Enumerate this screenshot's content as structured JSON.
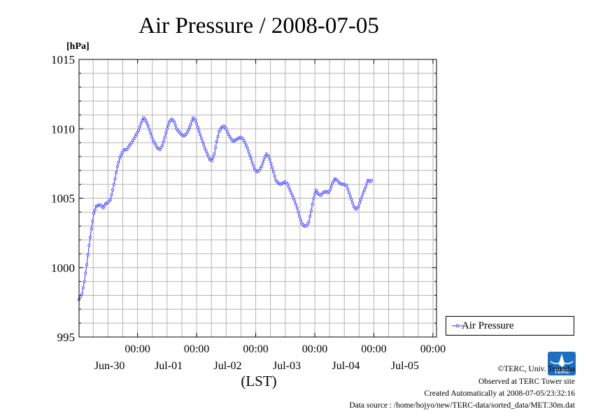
{
  "chart_data": {
    "type": "line",
    "title": "Air Pressure / 2008-07-05",
    "ylabel": "[hPa]",
    "xlabel": "(LST)",
    "ylim": [
      995,
      1015
    ],
    "yticks": [
      995,
      1000,
      1005,
      1010,
      1015
    ],
    "xlim": [
      -0.99,
      5.06
    ],
    "xticks": [
      {
        "pos": 0,
        "time": "00:00",
        "date": "Jun-30"
      },
      {
        "pos": 1,
        "time": "00:00",
        "date": "Jul-01"
      },
      {
        "pos": 2,
        "time": "00:00",
        "date": "Jul-02"
      },
      {
        "pos": 3,
        "time": "00:00",
        "date": "Jul-03"
      },
      {
        "pos": 4,
        "time": "00:00",
        "date": "Jul-04"
      },
      {
        "pos": 5,
        "time": "00:00",
        "date": "Jul-05"
      }
    ],
    "grid": true,
    "legend_position": "right",
    "series": [
      {
        "name": "Air Pressure",
        "color": "#3333ff",
        "x_unit": "days relative to 2008-07-01 00:00 LST (tick 00:00 labelled Jul-01 = 1)",
        "points": [
          [
            -0.99,
            997.7
          ],
          [
            -0.94,
            998.1
          ],
          [
            -0.9,
            999.0
          ],
          [
            -0.86,
            1000.2
          ],
          [
            -0.82,
            1001.6
          ],
          [
            -0.78,
            1002.8
          ],
          [
            -0.74,
            1003.9
          ],
          [
            -0.7,
            1004.4
          ],
          [
            -0.66,
            1004.5
          ],
          [
            -0.62,
            1004.5
          ],
          [
            -0.58,
            1004.3
          ],
          [
            -0.54,
            1004.6
          ],
          [
            -0.5,
            1004.7
          ],
          [
            -0.46,
            1004.9
          ],
          [
            -0.42,
            1005.6
          ],
          [
            -0.38,
            1006.4
          ],
          [
            -0.34,
            1007.3
          ],
          [
            -0.3,
            1007.9
          ],
          [
            -0.26,
            1008.3
          ],
          [
            -0.22,
            1008.5
          ],
          [
            -0.18,
            1008.5
          ],
          [
            -0.14,
            1008.8
          ],
          [
            -0.1,
            1009.0
          ],
          [
            -0.06,
            1009.3
          ],
          [
            -0.02,
            1009.6
          ],
          [
            0.02,
            1009.9
          ],
          [
            0.06,
            1010.4
          ],
          [
            0.1,
            1010.8
          ],
          [
            0.14,
            1010.6
          ],
          [
            0.18,
            1010.2
          ],
          [
            0.22,
            1009.7
          ],
          [
            0.26,
            1009.2
          ],
          [
            0.3,
            1008.9
          ],
          [
            0.34,
            1008.6
          ],
          [
            0.38,
            1008.5
          ],
          [
            0.42,
            1008.8
          ],
          [
            0.46,
            1009.4
          ],
          [
            0.5,
            1010.0
          ],
          [
            0.54,
            1010.5
          ],
          [
            0.58,
            1010.7
          ],
          [
            0.62,
            1010.5
          ],
          [
            0.66,
            1010.0
          ],
          [
            0.7,
            1009.8
          ],
          [
            0.74,
            1009.6
          ],
          [
            0.78,
            1009.5
          ],
          [
            0.82,
            1009.6
          ],
          [
            0.86,
            1009.9
          ],
          [
            0.9,
            1010.3
          ],
          [
            0.94,
            1010.8
          ],
          [
            0.98,
            1010.6
          ],
          [
            1.02,
            1010.1
          ],
          [
            1.06,
            1009.6
          ],
          [
            1.1,
            1009.1
          ],
          [
            1.14,
            1008.6
          ],
          [
            1.18,
            1008.2
          ],
          [
            1.22,
            1007.8
          ],
          [
            1.26,
            1007.7
          ],
          [
            1.3,
            1008.2
          ],
          [
            1.34,
            1009.1
          ],
          [
            1.38,
            1009.8
          ],
          [
            1.42,
            1010.1
          ],
          [
            1.46,
            1010.2
          ],
          [
            1.5,
            1010.0
          ],
          [
            1.54,
            1009.6
          ],
          [
            1.58,
            1009.3
          ],
          [
            1.62,
            1009.1
          ],
          [
            1.66,
            1009.2
          ],
          [
            1.7,
            1009.3
          ],
          [
            1.74,
            1009.4
          ],
          [
            1.78,
            1009.3
          ],
          [
            1.82,
            1009.0
          ],
          [
            1.86,
            1008.6
          ],
          [
            1.9,
            1008.1
          ],
          [
            1.94,
            1007.6
          ],
          [
            1.98,
            1007.1
          ],
          [
            2.02,
            1006.9
          ],
          [
            2.06,
            1007.0
          ],
          [
            2.1,
            1007.3
          ],
          [
            2.14,
            1007.8
          ],
          [
            2.18,
            1008.2
          ],
          [
            2.22,
            1008.0
          ],
          [
            2.26,
            1007.5
          ],
          [
            2.3,
            1006.9
          ],
          [
            2.34,
            1006.3
          ],
          [
            2.38,
            1006.1
          ],
          [
            2.42,
            1006.0
          ],
          [
            2.46,
            1006.1
          ],
          [
            2.5,
            1006.2
          ],
          [
            2.54,
            1006.0
          ],
          [
            2.58,
            1005.6
          ],
          [
            2.62,
            1005.2
          ],
          [
            2.66,
            1004.8
          ],
          [
            2.7,
            1004.3
          ],
          [
            2.74,
            1003.7
          ],
          [
            2.78,
            1003.2
          ],
          [
            2.82,
            1003.0
          ],
          [
            2.86,
            1003.0
          ],
          [
            2.9,
            1003.3
          ],
          [
            2.94,
            1004.1
          ],
          [
            2.98,
            1005.0
          ],
          [
            3.02,
            1005.6
          ],
          [
            3.06,
            1005.3
          ],
          [
            3.1,
            1005.2
          ],
          [
            3.14,
            1005.4
          ],
          [
            3.18,
            1005.5
          ],
          [
            3.22,
            1005.4
          ],
          [
            3.26,
            1005.6
          ],
          [
            3.3,
            1006.1
          ],
          [
            3.34,
            1006.4
          ],
          [
            3.38,
            1006.3
          ],
          [
            3.42,
            1006.1
          ],
          [
            3.46,
            1006.0
          ],
          [
            3.5,
            1006.0
          ],
          [
            3.54,
            1005.9
          ],
          [
            3.58,
            1005.4
          ],
          [
            3.62,
            1004.9
          ],
          [
            3.66,
            1004.4
          ],
          [
            3.7,
            1004.2
          ],
          [
            3.74,
            1004.4
          ],
          [
            3.78,
            1004.9
          ],
          [
            3.82,
            1005.4
          ],
          [
            3.86,
            1005.8
          ],
          [
            3.9,
            1006.3
          ],
          [
            3.94,
            1006.2
          ],
          [
            3.96,
            1006.3
          ]
        ]
      }
    ]
  },
  "footer": {
    "copyright": "©TERC, Univ. Tsukuba",
    "observed": "Observed at TERC Tower site",
    "created": "Created Automatically at 2008-07-05/23:32:16",
    "source": "Data source : /home/hojyo/new/TERC-data/sorted_data/MET.30m.dat"
  },
  "logo": {
    "text": "TERC",
    "color": "#1f6fc0"
  }
}
